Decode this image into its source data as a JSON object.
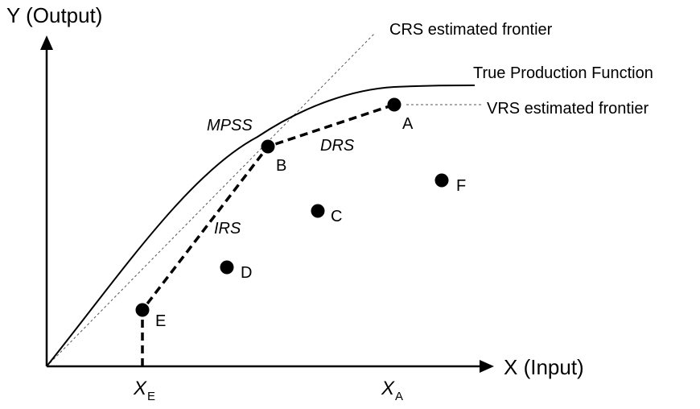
{
  "axes": {
    "y_title": "Y (Output)",
    "x_title": "X (Input)"
  },
  "curves": {
    "crs_label": "CRS estimated frontier",
    "true_label": "True Production Function",
    "vrs_label": "VRS estimated frontier"
  },
  "regions": {
    "mpss": "MPSS",
    "drs": "DRS",
    "irs": "IRS"
  },
  "points": {
    "a": "A",
    "b": "B",
    "c": "C",
    "d": "D",
    "e": "E",
    "f": "F"
  },
  "x_markers": {
    "xe_base": "X",
    "xe_sub": "E",
    "xa_base": "X",
    "xa_sub": "A"
  }
}
